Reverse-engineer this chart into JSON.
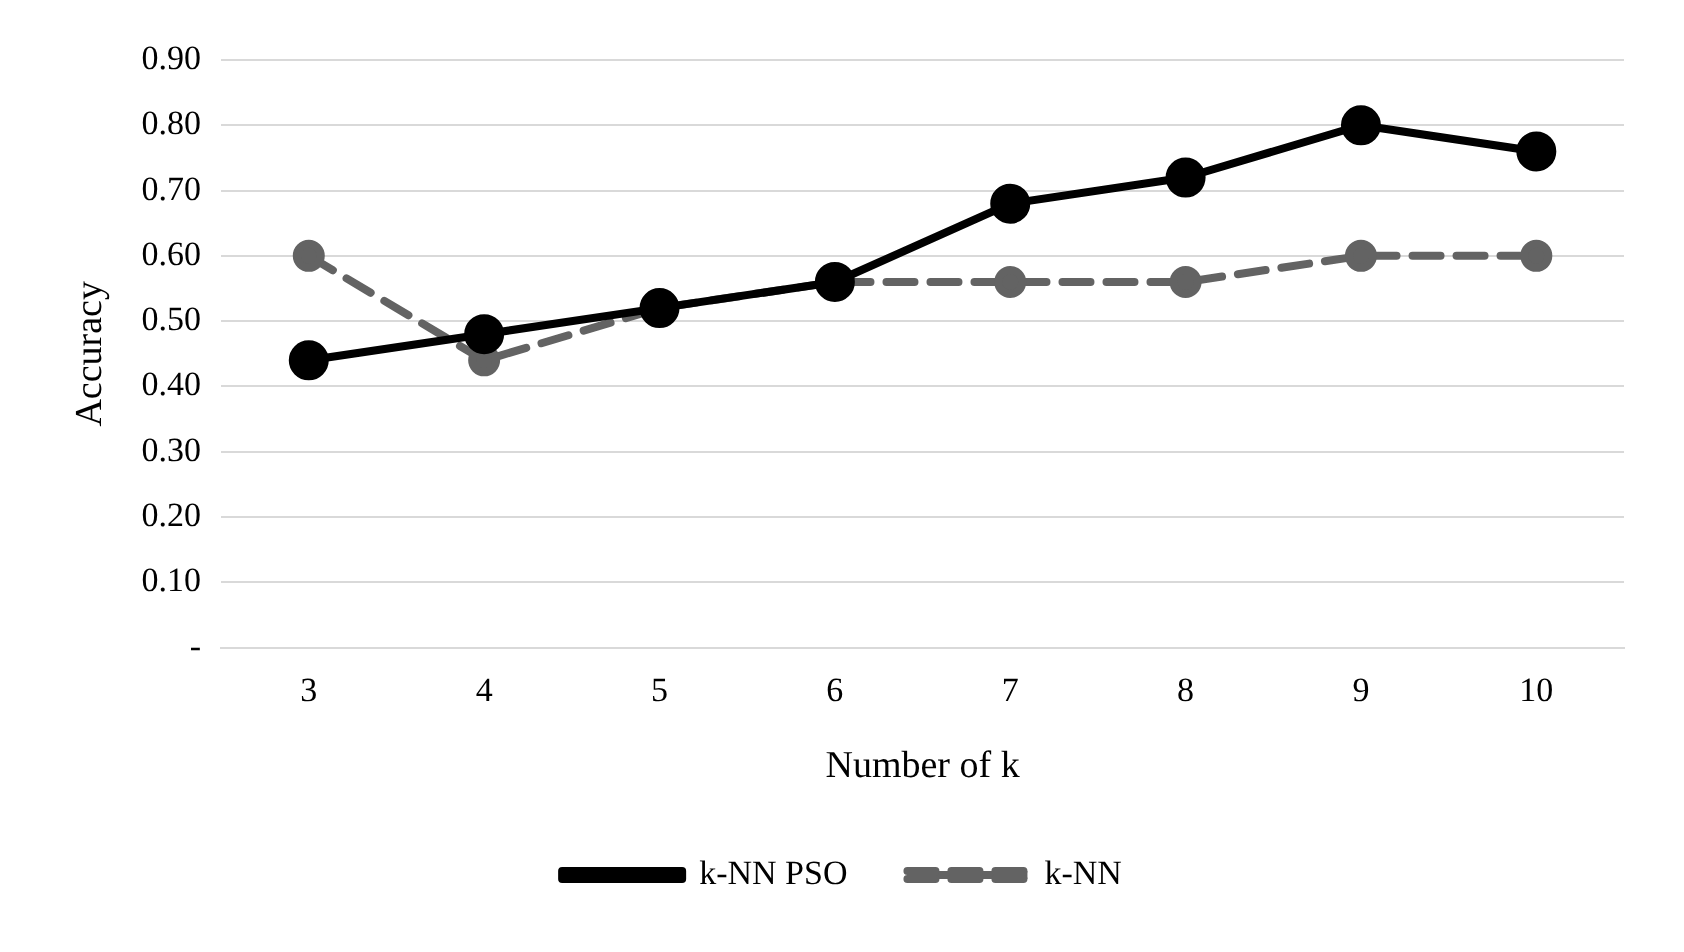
{
  "chart_data": {
    "type": "line",
    "xlabel": "Number of k",
    "ylabel": "Accuracy",
    "categories": [
      "3",
      "4",
      "5",
      "6",
      "7",
      "8",
      "9",
      "10"
    ],
    "series": [
      {
        "name": "k-NN",
        "color": "#636363",
        "line_style": "dashed",
        "values": [
          0.6,
          0.44,
          0.52,
          0.56,
          0.56,
          0.56,
          0.6,
          0.6
        ]
      },
      {
        "name": "k-NN PSO",
        "color": "#000000",
        "line_style": "solid",
        "values": [
          0.44,
          0.48,
          0.52,
          0.56,
          0.68,
          0.72,
          0.8,
          0.76
        ]
      }
    ],
    "ylim": [
      0,
      0.9
    ],
    "yticks": [
      {
        "value": 0,
        "label": "-"
      },
      {
        "value": 0.1,
        "label": "0.10"
      },
      {
        "value": 0.2,
        "label": "0.20"
      },
      {
        "value": 0.3,
        "label": "0.30"
      },
      {
        "value": 0.4,
        "label": "0.40"
      },
      {
        "value": 0.5,
        "label": "0.50"
      },
      {
        "value": 0.6,
        "label": "0.60"
      },
      {
        "value": 0.7,
        "label": "0.70"
      },
      {
        "value": 0.8,
        "label": "0.80"
      },
      {
        "value": 0.9,
        "label": "0.90"
      }
    ],
    "grid": "y",
    "legend": "bottom",
    "marker": "circle"
  }
}
